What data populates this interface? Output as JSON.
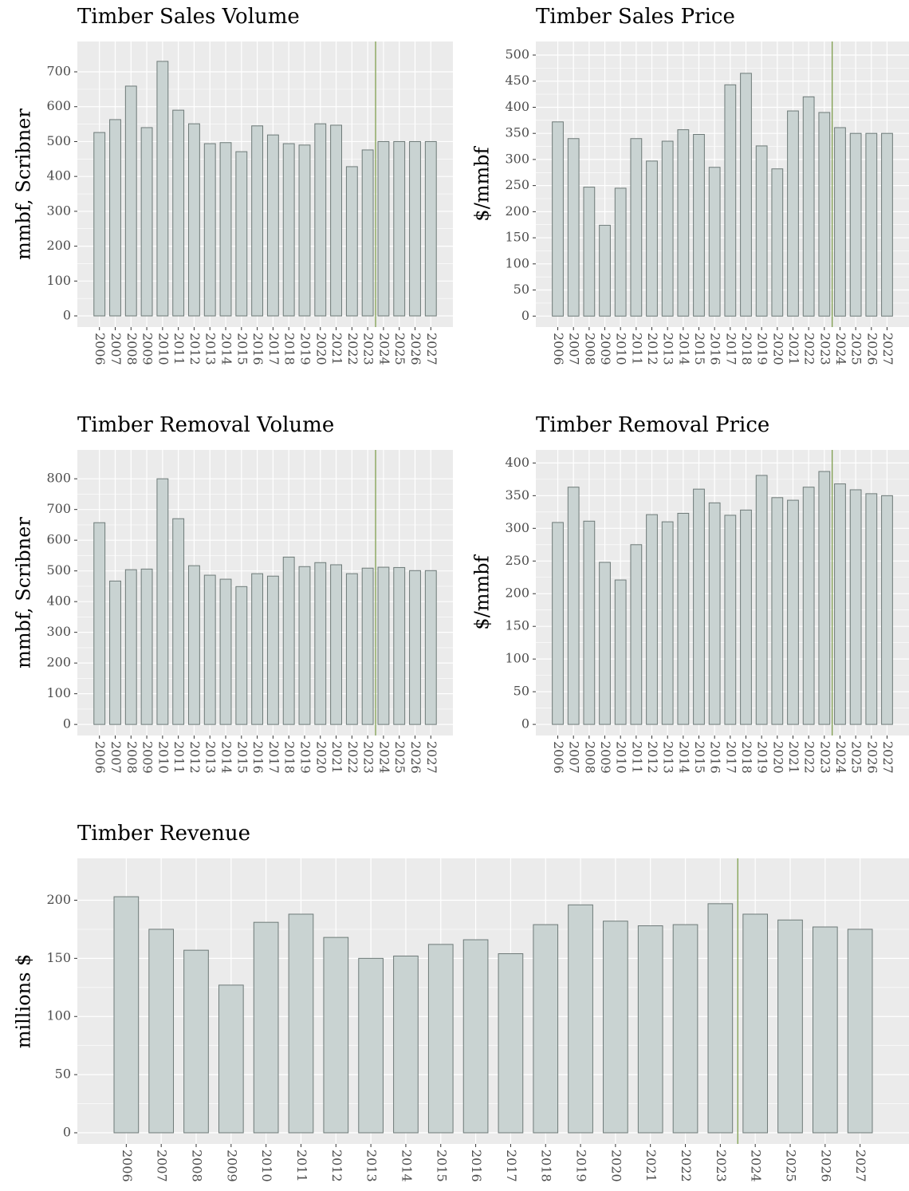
{
  "chart_data": [
    {
      "type": "bar",
      "title": "Timber Sales Volume",
      "ylabel": "mmbf, Scribner",
      "categories": [
        "2006",
        "2007",
        "2008",
        "2009",
        "2010",
        "2011",
        "2012",
        "2013",
        "2014",
        "2015",
        "2016",
        "2017",
        "2018",
        "2019",
        "2020",
        "2021",
        "2022",
        "2023",
        "2024",
        "2025",
        "2026",
        "2027"
      ],
      "values": [
        526,
        563,
        659,
        540,
        730,
        590,
        551,
        494,
        497,
        471,
        545,
        519,
        494,
        490,
        551,
        547,
        428,
        476,
        500,
        500,
        500,
        500
      ],
      "color": "#c9d3d2",
      "edge_color": "#6e7a78",
      "ylim": [
        -32,
        787
      ],
      "yticks": [
        0,
        100,
        200,
        300,
        400,
        500,
        600,
        700
      ],
      "grid": true,
      "vline": {
        "x": 2023.5,
        "color": "#7f9f4f"
      }
    },
    {
      "type": "bar",
      "title": "Timber Sales Price",
      "ylabel": "$/mmbf",
      "categories": [
        "2006",
        "2007",
        "2008",
        "2009",
        "2010",
        "2011",
        "2012",
        "2013",
        "2014",
        "2015",
        "2016",
        "2017",
        "2018",
        "2019",
        "2020",
        "2021",
        "2022",
        "2023",
        "2024",
        "2025",
        "2026",
        "2027"
      ],
      "values": [
        372,
        340,
        247,
        174,
        245,
        340,
        297,
        335,
        357,
        348,
        285,
        443,
        465,
        326,
        282,
        393,
        420,
        390,
        361,
        350,
        350,
        350
      ],
      "color": "#c9d3d2",
      "edge_color": "#6e7a78",
      "ylim": [
        -21,
        526
      ],
      "yticks": [
        0,
        50,
        100,
        150,
        200,
        250,
        300,
        350,
        400,
        450,
        500
      ],
      "grid": true,
      "vline": {
        "x": 2023.5,
        "color": "#7f9f4f"
      }
    },
    {
      "type": "bar",
      "title": "Timber Removal Volume",
      "ylabel": "mmbf, Scribner",
      "categories": [
        "2006",
        "2007",
        "2008",
        "2009",
        "2010",
        "2011",
        "2012",
        "2013",
        "2014",
        "2015",
        "2016",
        "2017",
        "2018",
        "2019",
        "2020",
        "2021",
        "2022",
        "2023",
        "2024",
        "2025",
        "2026",
        "2027"
      ],
      "values": [
        657,
        467,
        504,
        506,
        800,
        670,
        517,
        486,
        473,
        449,
        491,
        483,
        545,
        514,
        527,
        520,
        491,
        509,
        512,
        511,
        501,
        501
      ],
      "color": "#c9d3d2",
      "edge_color": "#6e7a78",
      "ylim": [
        -36,
        894
      ],
      "yticks": [
        0,
        100,
        200,
        300,
        400,
        500,
        600,
        700,
        800
      ],
      "grid": true,
      "vline": {
        "x": 2023.5,
        "color": "#7f9f4f"
      }
    },
    {
      "type": "bar",
      "title": "Timber Removal Price",
      "ylabel": "$/mmbf",
      "categories": [
        "2006",
        "2007",
        "2008",
        "2009",
        "2010",
        "2011",
        "2012",
        "2013",
        "2014",
        "2015",
        "2016",
        "2017",
        "2018",
        "2019",
        "2020",
        "2021",
        "2022",
        "2023",
        "2024",
        "2025",
        "2026",
        "2027"
      ],
      "values": [
        309,
        363,
        311,
        248,
        221,
        275,
        321,
        310,
        323,
        360,
        339,
        320,
        328,
        381,
        347,
        343,
        363,
        387,
        368,
        359,
        353,
        350
      ],
      "color": "#c9d3d2",
      "edge_color": "#6e7a78",
      "ylim": [
        -17,
        420
      ],
      "yticks": [
        0,
        50,
        100,
        150,
        200,
        250,
        300,
        350,
        400
      ],
      "grid": true,
      "vline": {
        "x": 2023.5,
        "color": "#7f9f4f"
      }
    },
    {
      "type": "bar",
      "title": "Timber Revenue",
      "ylabel": "millions $",
      "categories": [
        "2006",
        "2007",
        "2008",
        "2009",
        "2010",
        "2011",
        "2012",
        "2013",
        "2014",
        "2015",
        "2016",
        "2017",
        "2018",
        "2019",
        "2020",
        "2021",
        "2022",
        "2023",
        "2024",
        "2025",
        "2026",
        "2027"
      ],
      "values": [
        203,
        175,
        157,
        127,
        181,
        188,
        168,
        150,
        152,
        162,
        166,
        154,
        179,
        196,
        182,
        178,
        179,
        197,
        188,
        183,
        177,
        175
      ],
      "color": "#c9d3d2",
      "edge_color": "#6e7a78",
      "ylim": [
        -9.6,
        236
      ],
      "yticks": [
        0,
        50,
        100,
        150,
        200
      ],
      "grid": true,
      "vline": {
        "x": 2023.5,
        "color": "#7f9f4f"
      }
    }
  ]
}
